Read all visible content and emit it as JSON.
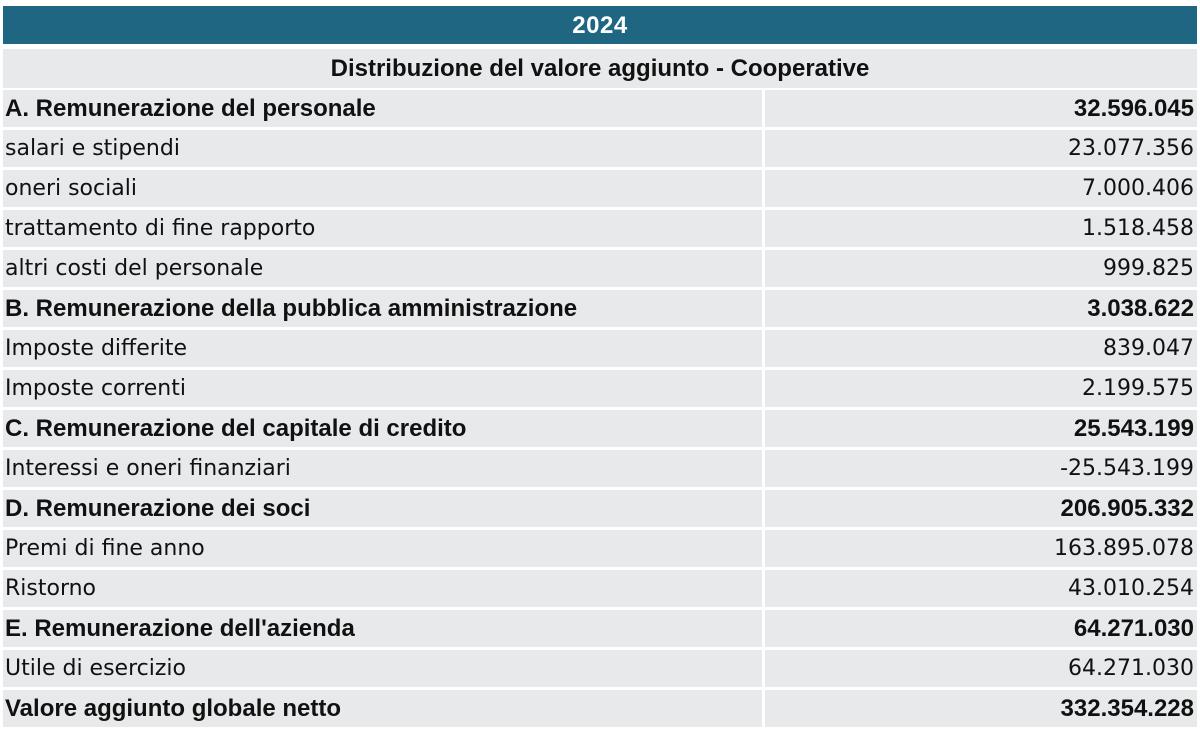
{
  "header": {
    "year": "2024",
    "title": "Distribuzione del valore aggiunto - Cooperative"
  },
  "rows": [
    {
      "label": "A. Remunerazione del personale",
      "value": "32.596.045",
      "bold": true
    },
    {
      "label": "salari e stipendi",
      "value": "23.077.356",
      "bold": false
    },
    {
      "label": "oneri sociali",
      "value": "7.000.406",
      "bold": false
    },
    {
      "label": "trattamento di fine rapporto",
      "value": "1.518.458",
      "bold": false
    },
    {
      "label": "altri costi del personale",
      "value": "999.825",
      "bold": false
    },
    {
      "label": "B. Remunerazione della pubblica amministrazione",
      "value": "3.038.622",
      "bold": true
    },
    {
      "label": "Imposte differite",
      "value": "839.047",
      "bold": false
    },
    {
      "label": "Imposte correnti",
      "value": "2.199.575",
      "bold": false
    },
    {
      "label": "C. Remunerazione del capitale di credito",
      "value": "25.543.199",
      "bold": true
    },
    {
      "label": "Interessi e oneri finanziari",
      "value": "-25.543.199",
      "bold": false
    },
    {
      "label": "D. Remunerazione dei soci",
      "value": "206.905.332",
      "bold": true
    },
    {
      "label": "Premi di fine anno",
      "value": "163.895.078",
      "bold": false
    },
    {
      "label": "Ristorno",
      "value": "43.010.254",
      "bold": false
    },
    {
      "label": "E. Remunerazione dell'azienda",
      "value": "64.271.030",
      "bold": true
    },
    {
      "label": "Utile di esercizio",
      "value": "64.271.030",
      "bold": false
    },
    {
      "label": "Valore aggiunto globale netto",
      "value": "332.354.228",
      "bold": true
    }
  ],
  "colors": {
    "header_bg": "#1e6681",
    "row_bg": "#e7e9eb",
    "header_text": "#ffffff",
    "text": "#111111"
  }
}
